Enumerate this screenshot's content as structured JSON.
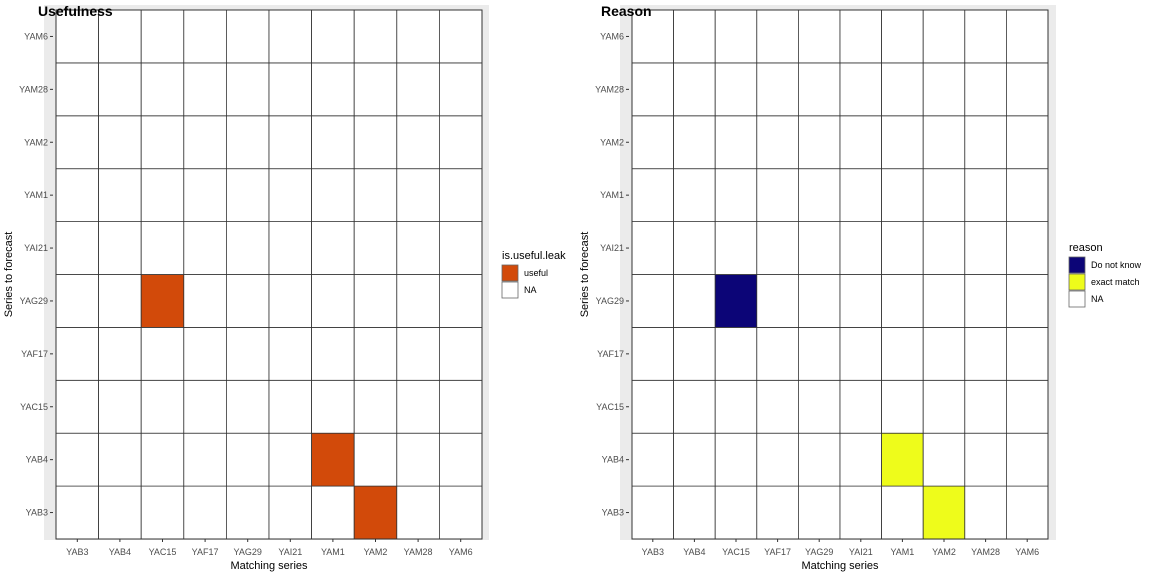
{
  "chart_data": [
    {
      "type": "heatmap",
      "title": "Usefulness",
      "xlabel": "Matching series",
      "ylabel": "Series to forecast",
      "x_categories": [
        "YAB3",
        "YAB4",
        "YAC15",
        "YAF17",
        "YAG29",
        "YAI21",
        "YAM1",
        "YAM2",
        "YAM28",
        "YAM6"
      ],
      "y_categories": [
        "YAB3",
        "YAB4",
        "YAC15",
        "YAF17",
        "YAG29",
        "YAI21",
        "YAM1",
        "YAM2",
        "YAM28",
        "YAM6"
      ],
      "legend": {
        "title": "is.useful.leak",
        "position": "right",
        "entries": [
          {
            "label": "useful",
            "color": "#d24a0a"
          },
          {
            "label": "NA",
            "color": "#ffffff"
          }
        ]
      },
      "cells": [
        {
          "x": "YAC15",
          "y": "YAG29",
          "value": "useful"
        },
        {
          "x": "YAM1",
          "y": "YAB4",
          "value": "useful"
        },
        {
          "x": "YAM2",
          "y": "YAB3",
          "value": "useful"
        }
      ],
      "grid": true
    },
    {
      "type": "heatmap",
      "title": "Reason",
      "xlabel": "Matching series",
      "ylabel": "Series to forecast",
      "x_categories": [
        "YAB3",
        "YAB4",
        "YAC15",
        "YAF17",
        "YAG29",
        "YAI21",
        "YAM1",
        "YAM2",
        "YAM28",
        "YAM6"
      ],
      "y_categories": [
        "YAB3",
        "YAB4",
        "YAC15",
        "YAF17",
        "YAG29",
        "YAI21",
        "YAM1",
        "YAM2",
        "YAM28",
        "YAM6"
      ],
      "legend": {
        "title": "reason",
        "position": "right",
        "entries": [
          {
            "label": "Do not know",
            "color": "#0c0577"
          },
          {
            "label": "exact match",
            "color": "#eefc1b"
          },
          {
            "label": "NA",
            "color": "#ffffff"
          }
        ]
      },
      "cells": [
        {
          "x": "YAC15",
          "y": "YAG29",
          "value": "Do not know"
        },
        {
          "x": "YAM1",
          "y": "YAB4",
          "value": "exact match"
        },
        {
          "x": "YAM2",
          "y": "YAB3",
          "value": "exact match"
        }
      ],
      "grid": true
    }
  ]
}
